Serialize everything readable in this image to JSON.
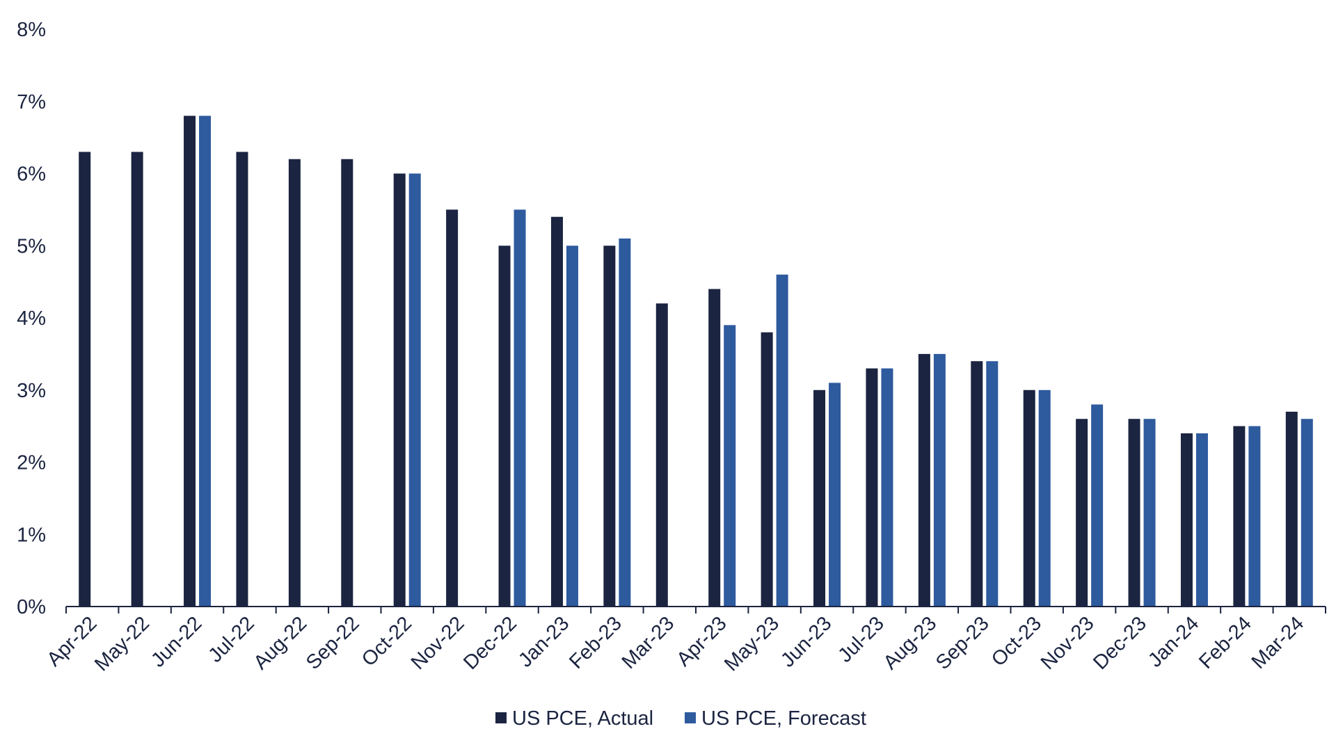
{
  "chart_data": {
    "type": "bar",
    "title": "",
    "xlabel": "",
    "ylabel": "",
    "ylim": [
      0,
      8
    ],
    "y_ticks": [
      "0%",
      "1%",
      "2%",
      "3%",
      "4%",
      "5%",
      "6%",
      "7%",
      "8%"
    ],
    "grid": false,
    "legend_position": "bottom-center",
    "categories": [
      "Apr-22",
      "May-22",
      "Jun-22",
      "Jul-22",
      "Aug-22",
      "Sep-22",
      "Oct-22",
      "Nov-22",
      "Dec-22",
      "Jan-23",
      "Feb-23",
      "Mar-23",
      "Apr-23",
      "May-23",
      "Jun-23",
      "Jul-23",
      "Aug-23",
      "Sep-23",
      "Oct-23",
      "Nov-23",
      "Dec-23",
      "Jan-24",
      "Feb-24",
      "Mar-24"
    ],
    "series": [
      {
        "name": "US PCE, Actual",
        "color": "#1b2440",
        "values": [
          6.3,
          6.3,
          6.8,
          6.3,
          6.2,
          6.2,
          6.0,
          5.5,
          5.0,
          5.4,
          5.0,
          4.2,
          4.4,
          3.8,
          3.0,
          3.3,
          3.5,
          3.4,
          3.0,
          2.6,
          2.6,
          2.4,
          2.5,
          2.7
        ]
      },
      {
        "name": "US PCE, Forecast",
        "color": "#2e5a9e",
        "values": [
          null,
          null,
          6.8,
          null,
          null,
          null,
          6.0,
          null,
          5.5,
          5.0,
          5.1,
          null,
          3.9,
          4.6,
          3.1,
          3.3,
          3.5,
          3.4,
          3.0,
          2.8,
          2.6,
          2.4,
          2.5,
          2.6
        ]
      }
    ]
  }
}
